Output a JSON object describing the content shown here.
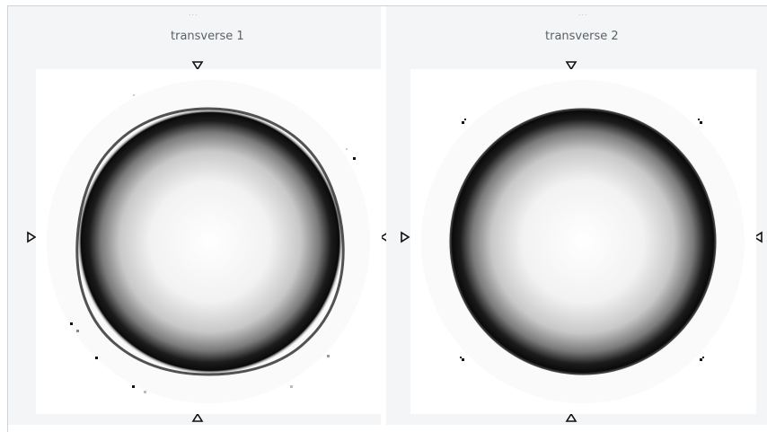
{
  "panels": [
    {
      "title": "transverse 1",
      "grip": "..."
    },
    {
      "title": "transverse 2",
      "grip": "..."
    }
  ],
  "markers": {
    "top_icon": "triangle-down-icon",
    "bottom_icon": "triangle-up-icon",
    "left_icon": "triangle-right-icon",
    "right_icon": "triangle-left-icon"
  },
  "colors": {
    "panel_background": "#f3f5f6",
    "plot_background": "#ffffff",
    "title_text": "#5c6166",
    "ring": "#0a0a0a"
  }
}
